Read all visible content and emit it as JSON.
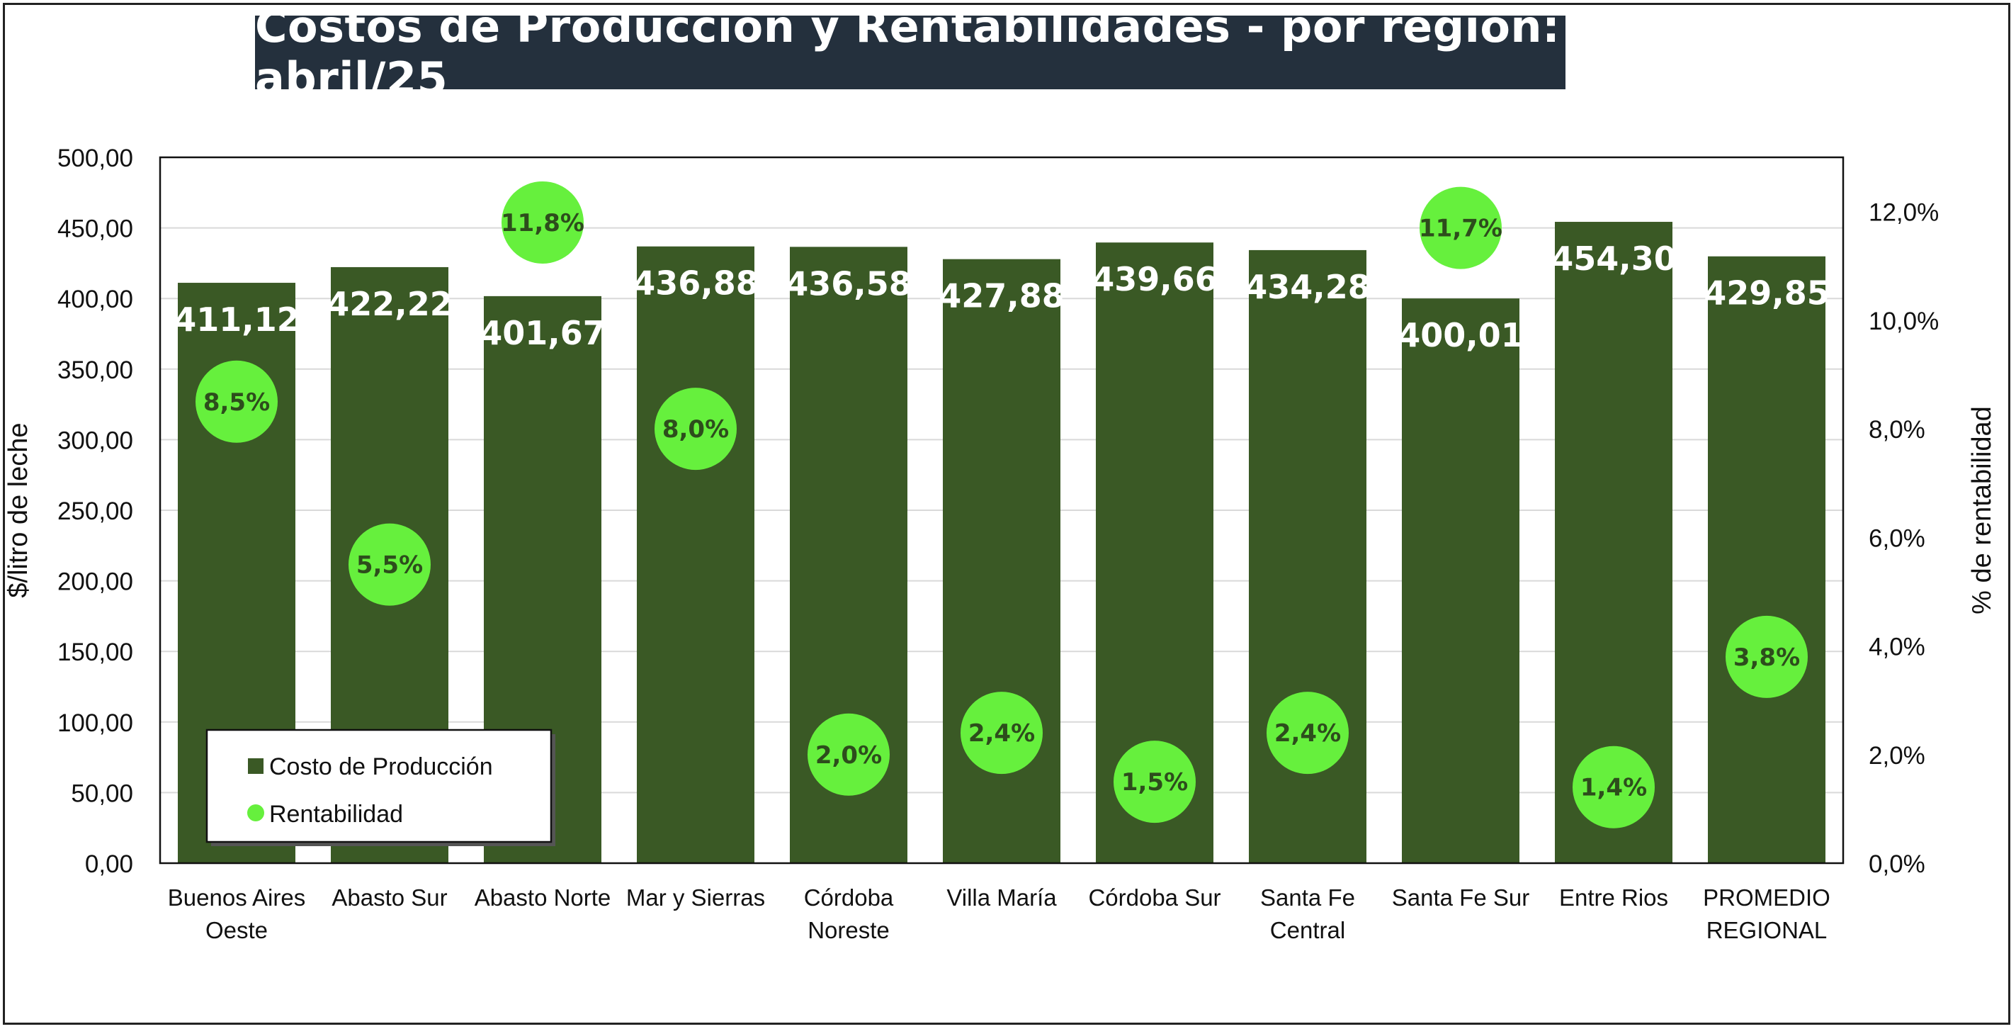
{
  "chart_data": {
    "type": "bar",
    "title": "Costos de Producción y Rentabilidades - por región: abril/25",
    "ylabel": "$/litro de leche",
    "y2label": "% de rentabilidad",
    "ylim": [
      0,
      500
    ],
    "y2lim": [
      0,
      13
    ],
    "yticks": [
      "0,00",
      "50,00",
      "100,00",
      "150,00",
      "200,00",
      "250,00",
      "300,00",
      "350,00",
      "400,00",
      "450,00",
      "500,00"
    ],
    "y2ticks": [
      "0,0%",
      "2,0%",
      "4,0%",
      "6,0%",
      "8,0%",
      "10,0%",
      "12,0%"
    ],
    "categories": [
      [
        "Buenos Aires",
        "Oeste"
      ],
      [
        "Abasto Sur"
      ],
      [
        "Abasto Norte"
      ],
      [
        "Mar y Sierras"
      ],
      [
        "Córdoba",
        "Noreste"
      ],
      [
        "Villa María"
      ],
      [
        "Córdoba Sur"
      ],
      [
        "Santa Fe",
        "Central"
      ],
      [
        "Santa Fe Sur"
      ],
      [
        "Entre Rios"
      ],
      [
        "PROMEDIO",
        "REGIONAL"
      ]
    ],
    "series": [
      {
        "name": "Costo de Producción",
        "type": "bar",
        "axis": "left",
        "values": [
          411.12,
          422.22,
          401.67,
          436.88,
          436.58,
          427.88,
          439.66,
          434.28,
          400.01,
          454.3,
          429.85
        ],
        "labels": [
          "411,12",
          "422,22",
          "401,67",
          "436,88",
          "436,58",
          "427,88",
          "439,66",
          "434,28",
          "400,01",
          "454,30",
          "429,85"
        ]
      },
      {
        "name": "Rentabilidad",
        "type": "scatter",
        "axis": "right",
        "values": [
          8.5,
          5.5,
          11.8,
          8.0,
          2.0,
          2.4,
          1.5,
          2.4,
          11.7,
          1.4,
          3.8
        ],
        "labels": [
          "8,5%",
          "5,5%",
          "11,8%",
          "8,0%",
          "2,0%",
          "2,4%",
          "1,5%",
          "2,4%",
          "11,7%",
          "1,4%",
          "3,8%"
        ]
      }
    ],
    "grid": true,
    "legend_position": "bottom-left",
    "colors": {
      "bar": "#3a5925",
      "dot": "#66f03d",
      "dot_text": "#2d4d1c",
      "bar_label": "#ffffff",
      "grid": "#d9d9d9",
      "title_bg": "#24303d",
      "title_text": "#ffffff"
    }
  }
}
